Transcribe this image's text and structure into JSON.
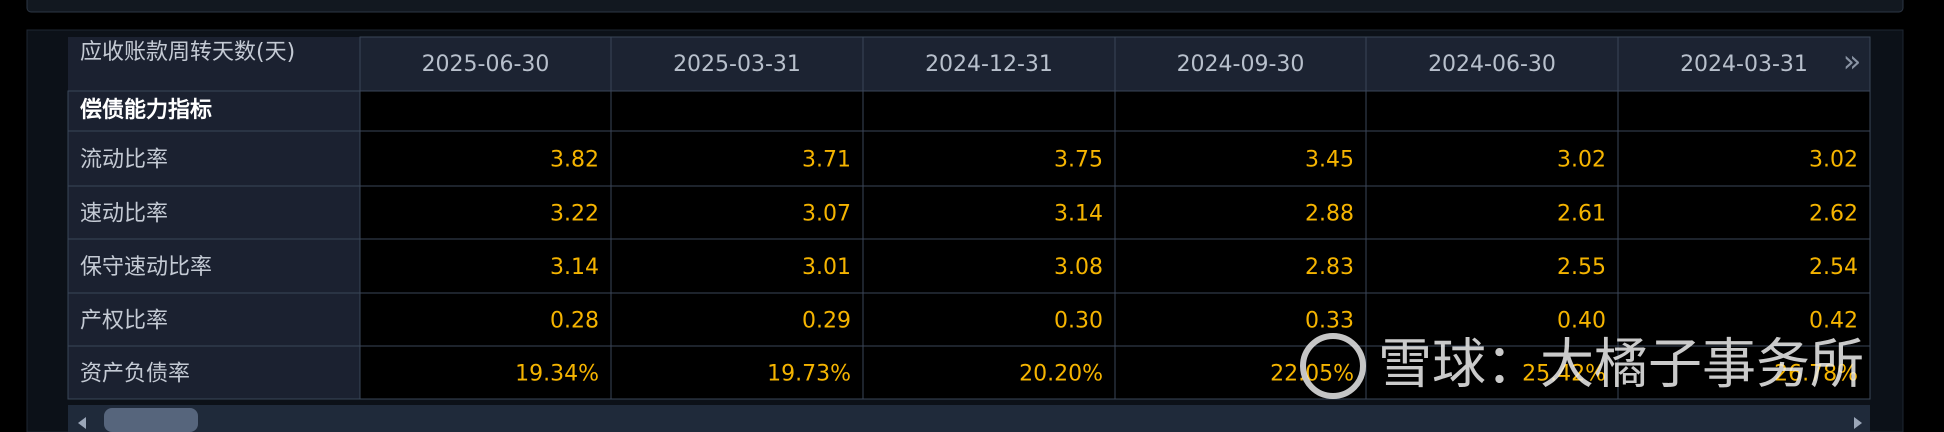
{
  "header": {
    "corner": "应收账款周转天数(天)",
    "dates": [
      "2025-06-30",
      "2025-03-31",
      "2024-12-31",
      "2024-09-30",
      "2024-06-30",
      "2024-03-31"
    ],
    "nav_next": "»"
  },
  "section": "偿债能力指标",
  "rows": [
    {
      "label": "流动比率",
      "values": [
        "3.82",
        "3.71",
        "3.75",
        "3.45",
        "3.02",
        "3.02"
      ]
    },
    {
      "label": "速动比率",
      "values": [
        "3.22",
        "3.07",
        "3.14",
        "2.88",
        "2.61",
        "2.62"
      ]
    },
    {
      "label": "保守速动比率",
      "values": [
        "3.14",
        "3.01",
        "3.08",
        "2.83",
        "2.55",
        "2.54"
      ]
    },
    {
      "label": "产权比率",
      "values": [
        "0.28",
        "0.29",
        "0.30",
        "0.33",
        "0.40",
        "0.42"
      ]
    },
    {
      "label": "资产负债率",
      "values": [
        "19.34%",
        "19.73%",
        "20.20%",
        "22.05%",
        "25.42%",
        "26.78%"
      ]
    }
  ],
  "watermark": "雪球：大橘子事务所"
}
